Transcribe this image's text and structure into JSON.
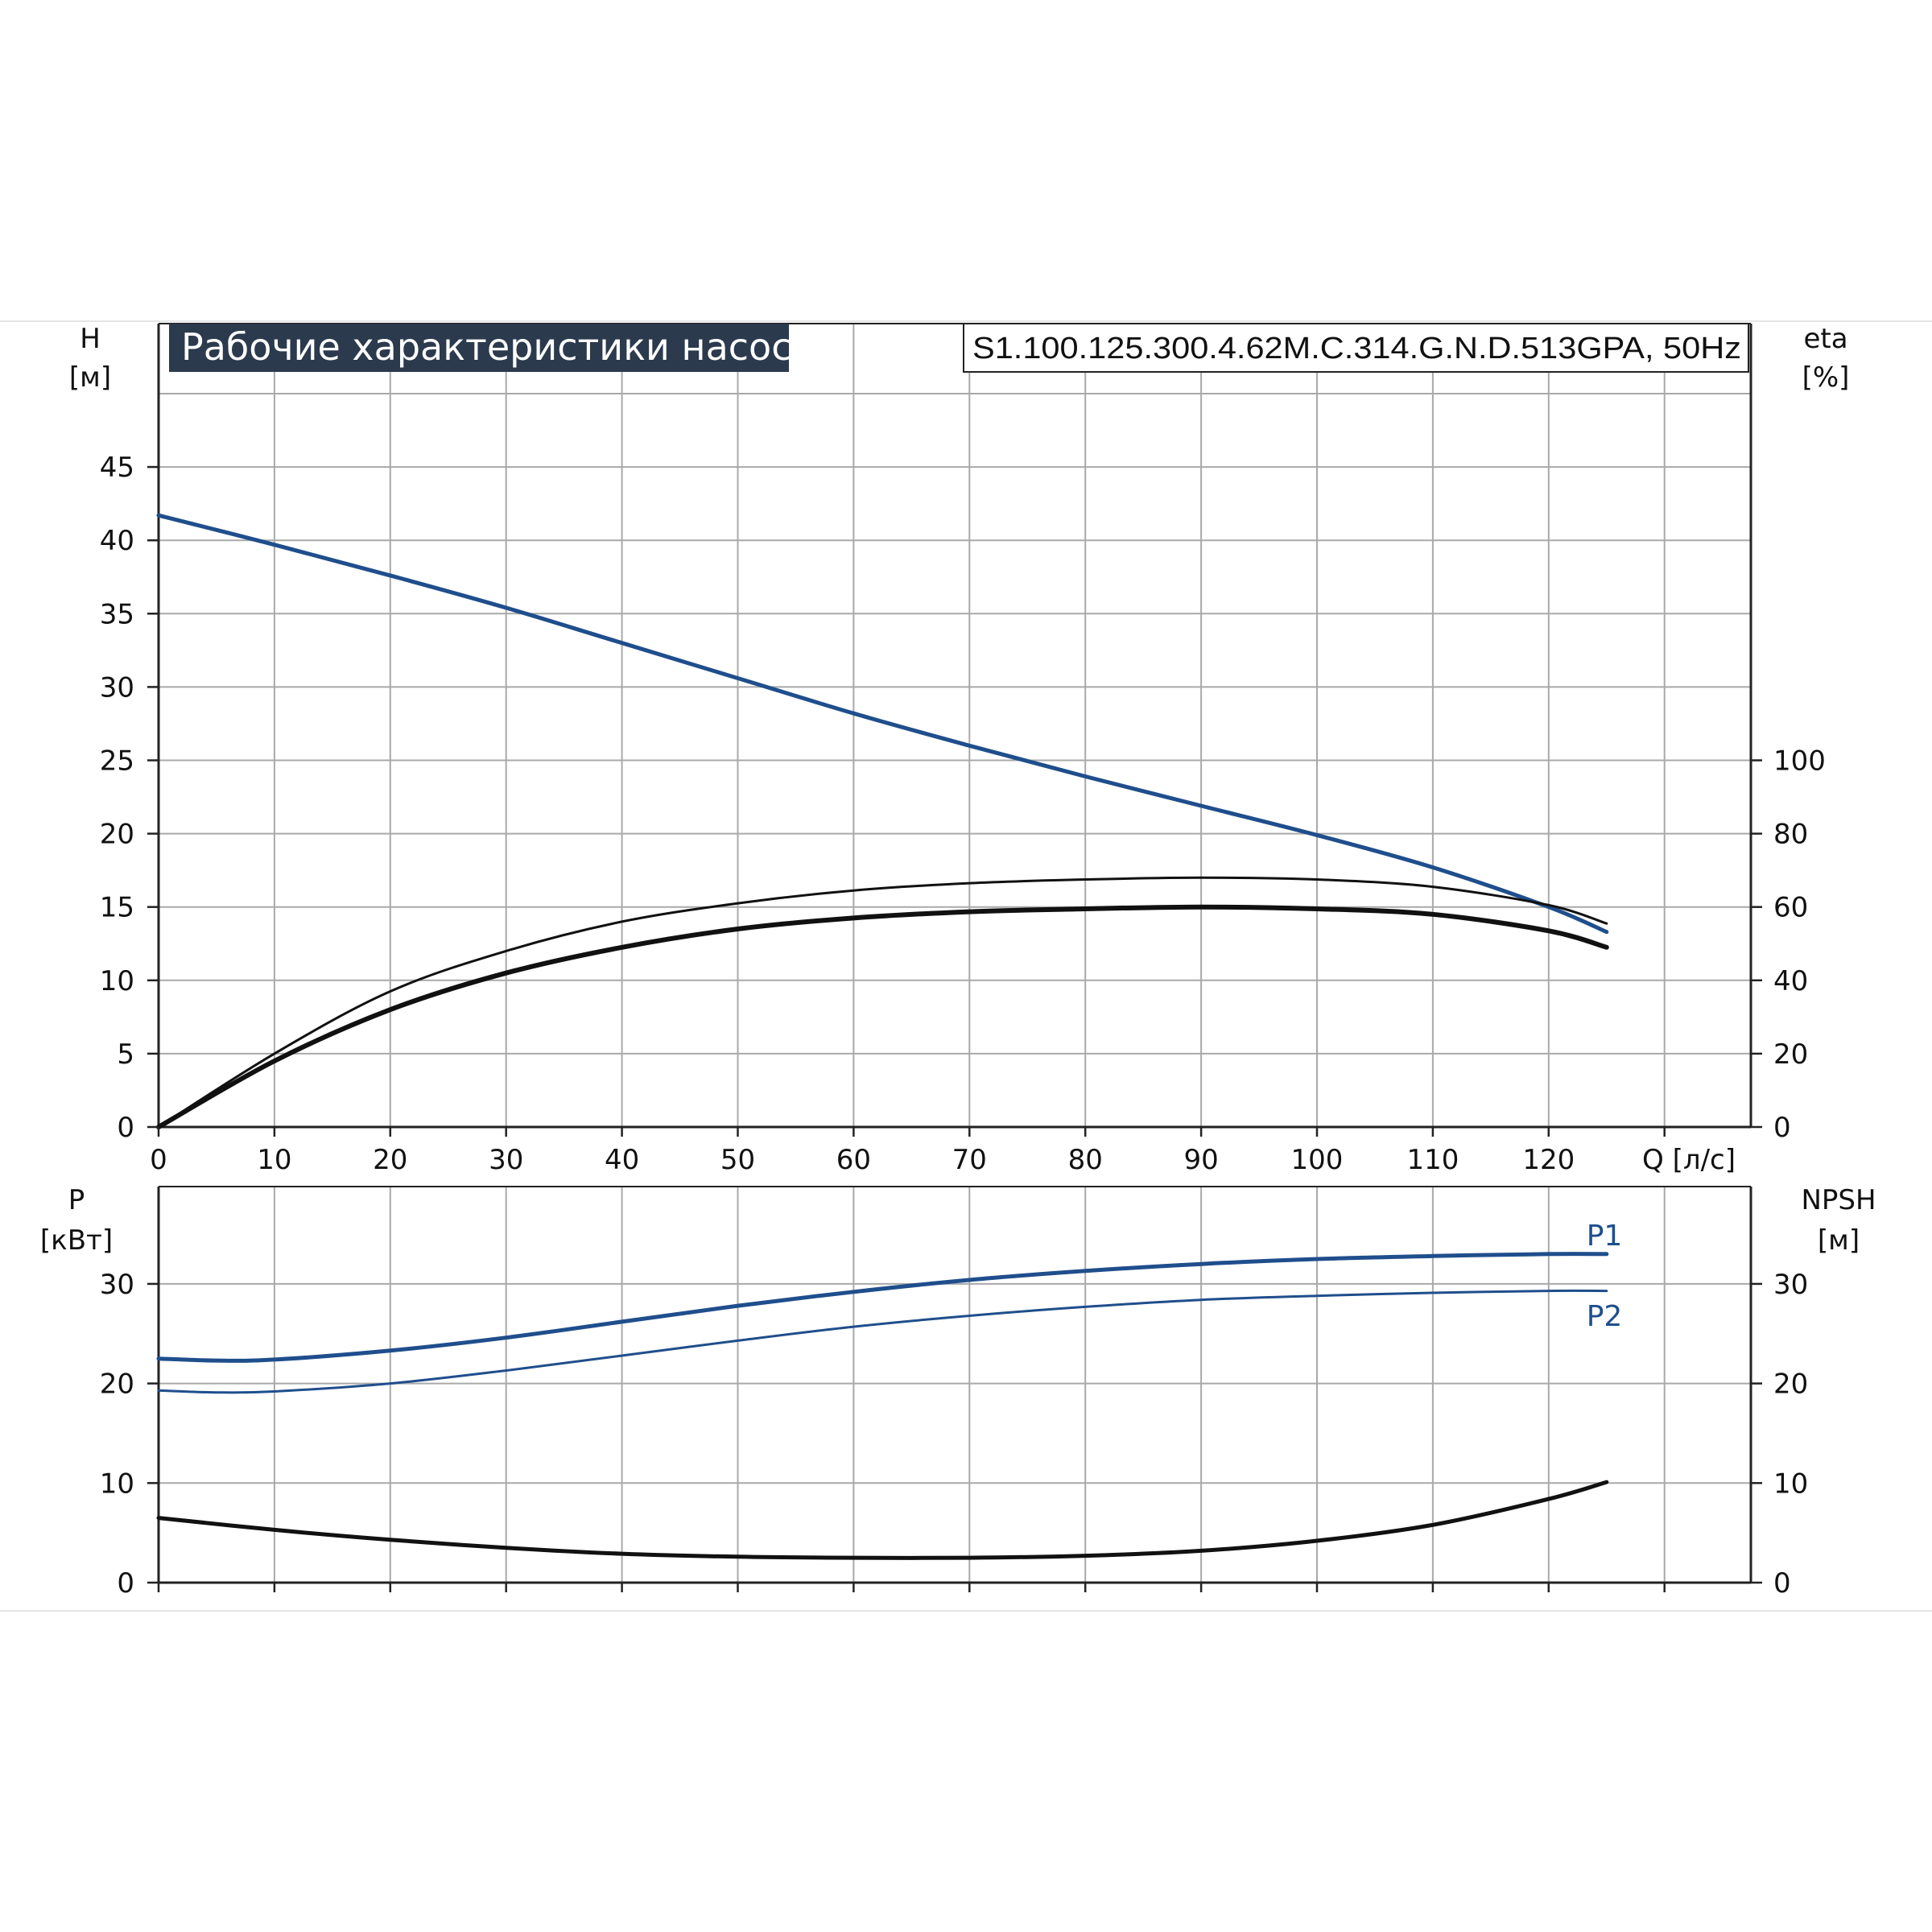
{
  "colors": {
    "blue": "#1f4e8c",
    "black": "#111111",
    "title_bg": "#2b3a4d",
    "grid": "#a9a9a9"
  },
  "title": "Рабочие характеристики насоса",
  "model": "S1.100.125.300.4.62M.C.314.G.N.D.513GPA, 50Hz",
  "chart_data": [
    {
      "type": "line",
      "name": "head-efficiency",
      "xlabel": "Q [л/с]",
      "ylabel_left": [
        "H",
        "[м]"
      ],
      "ylabel_right": [
        "eta",
        "[%]"
      ],
      "xlim": [
        0,
        130
      ],
      "ylim_left": [
        0,
        50
      ],
      "ylim_right": [
        0,
        200
      ],
      "x_ticks": [
        0,
        10,
        20,
        30,
        40,
        50,
        60,
        70,
        80,
        90,
        100,
        110,
        120
      ],
      "y_ticks_left": [
        0,
        5,
        10,
        15,
        20,
        25,
        30,
        35,
        40,
        45
      ],
      "y_ticks_right": [
        0,
        20,
        40,
        60,
        80,
        100
      ],
      "grid": true,
      "series": [
        {
          "axis": "left",
          "color": "blue",
          "width": 5,
          "x": [
            0,
            10,
            20,
            30,
            40,
            50,
            60,
            70,
            80,
            90,
            100,
            110,
            120,
            125
          ],
          "y": [
            41.7,
            39.7,
            37.6,
            35.4,
            33.0,
            30.6,
            28.2,
            26.0,
            23.9,
            21.9,
            19.9,
            17.7,
            15.0,
            13.3
          ]
        },
        {
          "axis": "right",
          "color": "black",
          "width": 3,
          "x": [
            0,
            10,
            20,
            30,
            40,
            50,
            60,
            70,
            80,
            90,
            100,
            110,
            120,
            125
          ],
          "y": [
            0,
            20,
            37,
            48,
            56,
            61,
            64.5,
            66.5,
            67.5,
            68,
            67.5,
            65.5,
            60.5,
            55.5
          ]
        },
        {
          "axis": "right",
          "color": "black",
          "width": 6,
          "x": [
            0,
            10,
            20,
            30,
            40,
            50,
            60,
            70,
            80,
            90,
            100,
            110,
            120,
            125
          ],
          "y": [
            0,
            18,
            32,
            42,
            49,
            54,
            57,
            58.7,
            59.5,
            60,
            59.5,
            58,
            53.5,
            49
          ]
        }
      ]
    },
    {
      "type": "line",
      "name": "power-npsh",
      "ylabel_left": [
        "P",
        "[кВт]"
      ],
      "ylabel_right": [
        "NPSH",
        "[м]"
      ],
      "xlim": [
        0,
        130
      ],
      "ylim_left": [
        0,
        40
      ],
      "ylim_right": [
        0,
        40
      ],
      "y_ticks_left": [
        0,
        10,
        20,
        30
      ],
      "y_ticks_right": [
        0,
        10,
        20,
        30
      ],
      "grid": true,
      "series": [
        {
          "name": "P1",
          "axis": "left",
          "color": "blue",
          "width": 5,
          "x": [
            0,
            5,
            10,
            20,
            30,
            40,
            50,
            60,
            70,
            80,
            90,
            100,
            110,
            120,
            125
          ],
          "y": [
            22.5,
            22.3,
            22.4,
            23.3,
            24.6,
            26.2,
            27.8,
            29.2,
            30.4,
            31.3,
            32.0,
            32.5,
            32.8,
            33.0,
            33.0
          ]
        },
        {
          "name": "P2",
          "axis": "left",
          "color": "blue",
          "width": 3,
          "x": [
            0,
            5,
            10,
            20,
            30,
            40,
            50,
            60,
            70,
            80,
            90,
            100,
            110,
            120,
            125
          ],
          "y": [
            19.3,
            19.1,
            19.2,
            20.0,
            21.3,
            22.8,
            24.3,
            25.7,
            26.8,
            27.7,
            28.4,
            28.8,
            29.1,
            29.3,
            29.3
          ]
        },
        {
          "axis": "right",
          "color": "black",
          "width": 5,
          "x": [
            0,
            10,
            20,
            30,
            40,
            50,
            60,
            70,
            80,
            90,
            100,
            110,
            120,
            125
          ],
          "y": [
            6.5,
            5.3,
            4.3,
            3.5,
            2.9,
            2.6,
            2.5,
            2.5,
            2.7,
            3.2,
            4.2,
            5.8,
            8.4,
            10.1
          ]
        }
      ]
    }
  ]
}
